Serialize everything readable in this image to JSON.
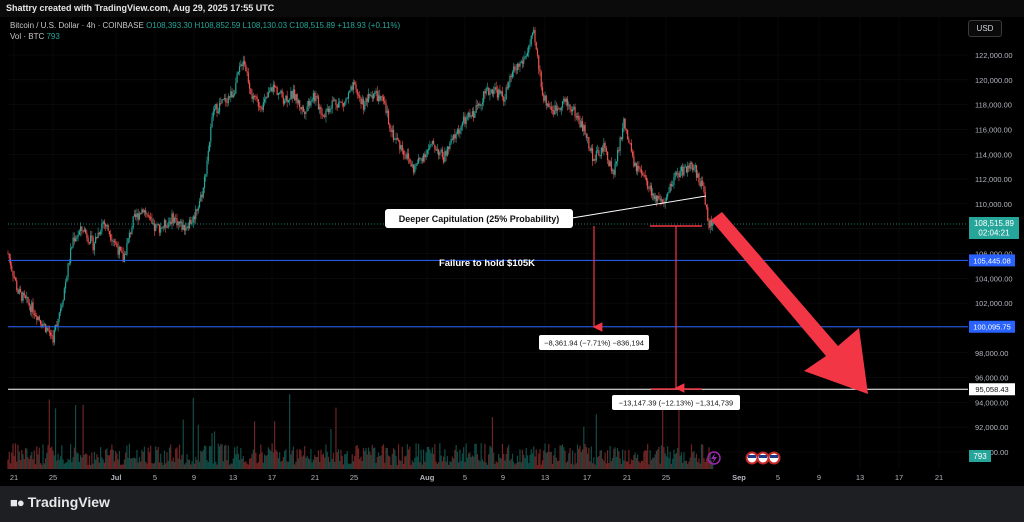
{
  "header": {
    "credit": "Shattry created with TradingView.com, Aug 29, 2025 17:55 UTC",
    "symbol": "Bitcoin / U.S. Dollar · 4h · COINBASE",
    "ohlc": "O108,393.30 H108,852.59 L108,130.03 C108,515.89 +118.93 (+0.11%)",
    "volume_label": "Vol · BTC",
    "volume_value": "793",
    "currency": "USD"
  },
  "footer": {
    "brand": "TradingView"
  },
  "colors": {
    "up": "#26a69a",
    "down": "#ef5350",
    "level": "#2962ff",
    "arrow": "#f23645"
  },
  "chart_data": {
    "type": "candlestick",
    "timeframe": "4h",
    "x_ticks": [
      "21",
      "25",
      "Jul",
      "5",
      "9",
      "13",
      "17",
      "21",
      "25",
      "Aug",
      "5",
      "9",
      "13",
      "17",
      "21",
      "25",
      "Sep",
      "5",
      "9",
      "13",
      "17",
      "21"
    ],
    "y_ticks": [
      "122,000.00",
      "120,000.00",
      "118,000.00",
      "116,000.00",
      "114,000.00",
      "112,000.00",
      "110,000.00",
      "108,000.00",
      "106,000.00",
      "104,000.00",
      "102,000.00",
      "100,000.00",
      "98,000.00",
      "96,000.00",
      "94,000.00",
      "92,000.00",
      "90,000.00"
    ],
    "ylim": [
      89000,
      124000
    ],
    "price_path": [
      [
        0,
        106000
      ],
      [
        2,
        102900
      ],
      [
        5,
        101500
      ],
      [
        9,
        99200
      ],
      [
        11,
        102600
      ],
      [
        13,
        107200
      ],
      [
        15,
        108000
      ],
      [
        17,
        106700
      ],
      [
        19,
        108600
      ],
      [
        21,
        107200
      ],
      [
        23,
        105500
      ],
      [
        25,
        108600
      ],
      [
        27,
        109700
      ],
      [
        29,
        108000
      ],
      [
        31,
        108200
      ],
      [
        33,
        108900
      ],
      [
        35,
        108100
      ],
      [
        37,
        108800
      ],
      [
        39,
        111200
      ],
      [
        41,
        117500
      ],
      [
        43,
        118200
      ],
      [
        45,
        119000
      ],
      [
        47,
        121800
      ],
      [
        49,
        118300
      ],
      [
        51,
        118000
      ],
      [
        53,
        119500
      ],
      [
        55,
        118500
      ],
      [
        57,
        118800
      ],
      [
        59,
        117500
      ],
      [
        61,
        118800
      ],
      [
        63,
        117200
      ],
      [
        65,
        118300
      ],
      [
        67,
        118000
      ],
      [
        69,
        119400
      ],
      [
        71,
        118000
      ],
      [
        73,
        119000
      ],
      [
        75,
        118100
      ],
      [
        77,
        115500
      ],
      [
        79,
        114300
      ],
      [
        81,
        112800
      ],
      [
        83,
        114000
      ],
      [
        85,
        114800
      ],
      [
        87,
        113700
      ],
      [
        89,
        115300
      ],
      [
        91,
        116600
      ],
      [
        93,
        117300
      ],
      [
        95,
        118800
      ],
      [
        97,
        119300
      ],
      [
        99,
        118500
      ],
      [
        101,
        120700
      ],
      [
        103,
        121600
      ],
      [
        105,
        123600
      ],
      [
        107,
        118500
      ],
      [
        109,
        117500
      ],
      [
        111,
        118300
      ],
      [
        113,
        117500
      ],
      [
        115,
        116000
      ],
      [
        117,
        113600
      ],
      [
        119,
        114500
      ],
      [
        121,
        112400
      ],
      [
        123,
        116600
      ],
      [
        125,
        113200
      ],
      [
        127,
        112000
      ],
      [
        129,
        110600
      ],
      [
        131,
        109700
      ],
      [
        133,
        112200
      ],
      [
        135,
        112800
      ],
      [
        137,
        113000
      ],
      [
        139,
        111000
      ],
      [
        140,
        108300
      ],
      [
        141,
        108516
      ]
    ],
    "last_price": "108,515.89",
    "countdown": "02:04:21",
    "levels": [
      {
        "label": "105,445.08",
        "value": 105445.08,
        "color": "#2962ff"
      },
      {
        "label": "100,095.75",
        "value": 100095.75,
        "color": "#2962ff"
      },
      {
        "label": "95,058.43",
        "value": 95058.43,
        "color": "#ffffff"
      }
    ],
    "annotations": {
      "callout": "Deeper Capitulation (25% Probability)",
      "support_text": "Failure to hold $105K",
      "measure_1": "−8,361.94 (−7.71%) −836,194",
      "measure_2": "−13,147.39 (−12.13%) −1,314,739"
    },
    "volume_badge": "793"
  }
}
